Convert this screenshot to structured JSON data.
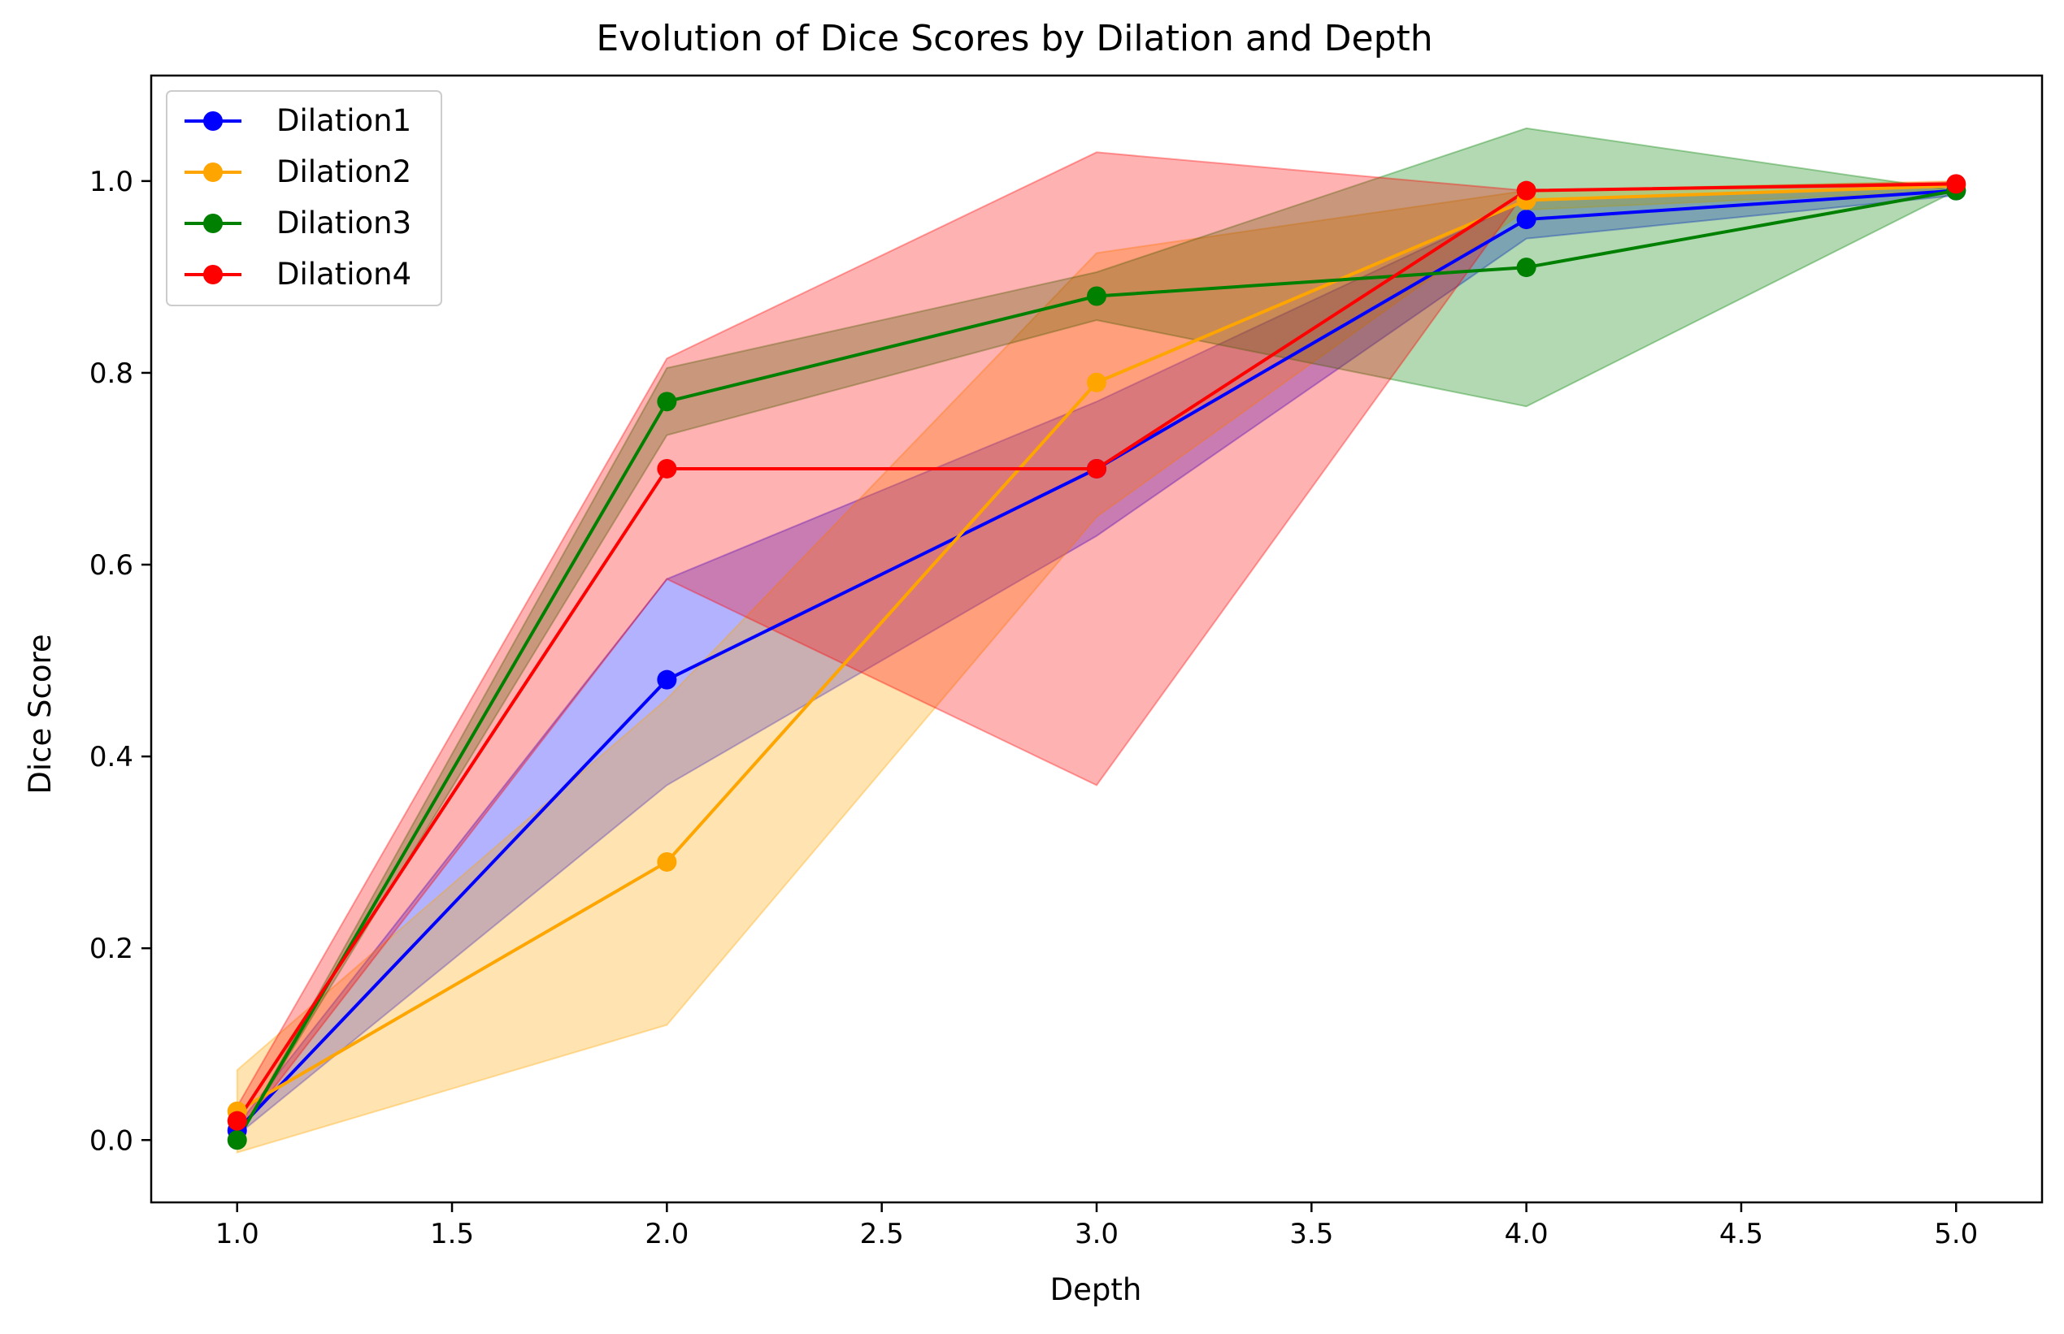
{
  "chart_data": {
    "type": "line",
    "title": "Evolution of Dice Scores by Dilation and Depth",
    "xlabel": "Depth",
    "ylabel": "Dice Score",
    "xlim": [
      0.8,
      5.2
    ],
    "ylim": [
      -0.065,
      1.11
    ],
    "xticks": [
      1.0,
      1.5,
      2.0,
      2.5,
      3.0,
      3.5,
      4.0,
      4.5,
      5.0
    ],
    "xtick_labels": [
      "1.0",
      "1.5",
      "2.0",
      "2.5",
      "3.0",
      "3.5",
      "4.0",
      "4.5",
      "5.0"
    ],
    "yticks": [
      0.0,
      0.2,
      0.4,
      0.6,
      0.8,
      1.0
    ],
    "ytick_labels": [
      "0.0",
      "0.2",
      "0.4",
      "0.6",
      "0.8",
      "1.0"
    ],
    "grid": false,
    "legend_position": "top-left",
    "x": [
      1.0,
      2.0,
      3.0,
      4.0,
      5.0
    ],
    "series": [
      {
        "name": "Dilation1",
        "color": "#0000ff",
        "values": [
          0.01,
          0.48,
          0.7,
          0.96,
          0.99
        ],
        "band_lower": [
          0.005,
          0.37,
          0.63,
          0.94,
          0.985
        ],
        "band_upper": [
          0.015,
          0.585,
          0.77,
          0.98,
          0.995
        ]
      },
      {
        "name": "Dilation2",
        "color": "#ffa500",
        "values": [
          0.03,
          0.29,
          0.79,
          0.98,
          0.995
        ],
        "band_lower": [
          -0.013,
          0.12,
          0.65,
          0.97,
          0.99
        ],
        "band_upper": [
          0.073,
          0.46,
          0.925,
          0.99,
          1.0
        ]
      },
      {
        "name": "Dilation3",
        "color": "#008000",
        "values": [
          0.0,
          0.77,
          0.88,
          0.91,
          0.99
        ],
        "band_lower": [
          0.0,
          0.735,
          0.855,
          0.765,
          0.99
        ],
        "band_upper": [
          0.0,
          0.805,
          0.905,
          1.055,
          0.99
        ]
      },
      {
        "name": "Dilation4",
        "color": "#ff0000",
        "values": [
          0.02,
          0.7,
          0.7,
          0.99,
          0.997
        ],
        "band_lower": [
          0.005,
          0.585,
          0.37,
          0.99,
          0.995
        ],
        "band_upper": [
          0.035,
          0.815,
          1.03,
          0.99,
          0.999
        ]
      }
    ]
  }
}
